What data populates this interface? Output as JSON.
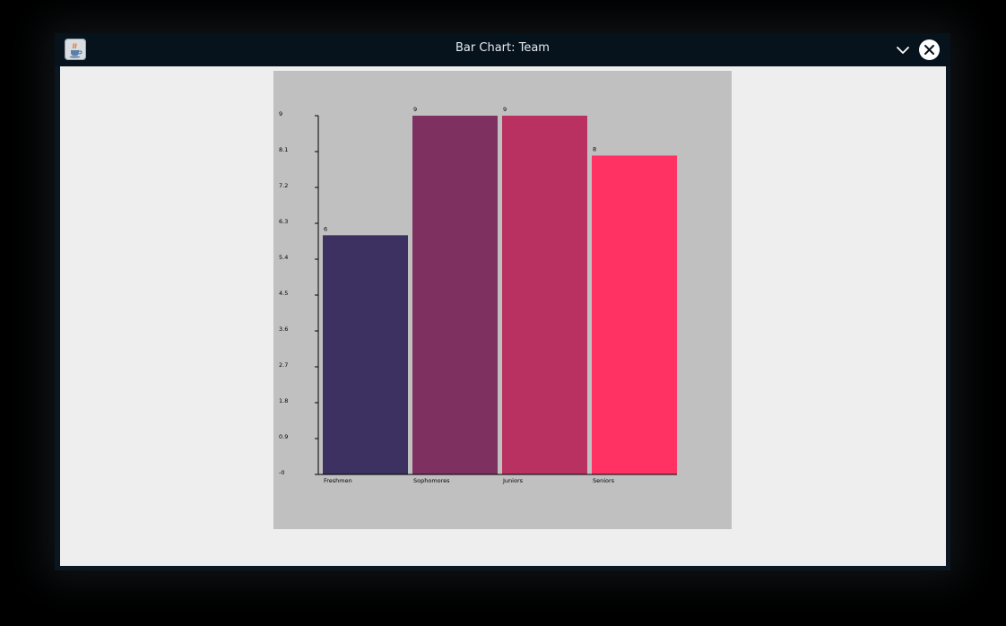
{
  "window": {
    "title": "Bar Chart: Team",
    "app_icon": "java-coffee-cup-icon",
    "minimize_icon": "chevron-down-icon",
    "close_icon": "close-icon"
  },
  "chart_data": {
    "type": "bar",
    "categories": [
      "Freshmen",
      "Sophomores",
      "Juniors",
      "Seniors"
    ],
    "values": [
      6,
      9,
      9,
      8
    ],
    "value_labels": [
      "6",
      "9",
      "9",
      "8"
    ],
    "colors": [
      "#3d3161",
      "#7e3160",
      "#b93160",
      "#ff3263"
    ],
    "ylim": [
      0,
      9
    ],
    "yticks": [
      "-0",
      "0.9",
      "1.8",
      "2.7",
      "3.6",
      "4.5",
      "5.4",
      "6.3",
      "7.2",
      "8.1",
      "9"
    ],
    "ytick_values": [
      0,
      0.9,
      1.8,
      2.7,
      3.6,
      4.5,
      5.4,
      6.3,
      7.2,
      8.1,
      9
    ],
    "background": "#c0c0c0",
    "grid": false,
    "legend": "none"
  }
}
